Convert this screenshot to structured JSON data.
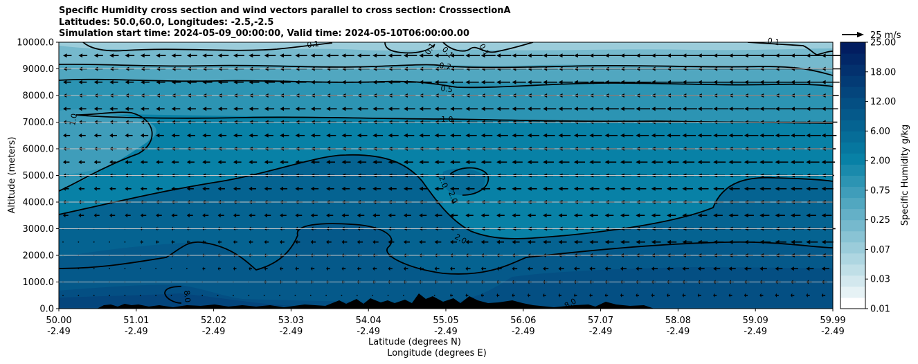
{
  "chart_data": {
    "type": "heatmap",
    "title_lines": [
      "Specific Humidity cross section and wind vectors parallel to cross section: CrosssectionA",
      "Latitudes: 50.0,60.0, Longitudes: -2.5,-2.5",
      "Simulation start time: 2024-05-09_00:00:00, Valid time: 2024-05-10T06:00:00.00"
    ],
    "ylabel": "Altitude (meters)",
    "xlabel_lat": "Latitude (degrees N)",
    "xlabel_lon": "Longitude (degrees E)",
    "ylim": [
      0,
      10000
    ],
    "y_ticks": [
      "0.0",
      "1000.0",
      "2000.0",
      "3000.0",
      "4000.0",
      "5000.0",
      "6000.0",
      "7000.0",
      "8000.0",
      "9000.0",
      "10000.0"
    ],
    "x_ticks_lat": [
      "50.00",
      "51.01",
      "52.02",
      "53.03",
      "54.04",
      "55.05",
      "56.06",
      "57.07",
      "58.08",
      "59.09",
      "59.99"
    ],
    "x_ticks_lon": [
      "-2.49",
      "-2.49",
      "-2.49",
      "-2.49",
      "-2.49",
      "-2.49",
      "-2.49",
      "-2.49",
      "-2.49",
      "-2.49",
      "-2.49"
    ],
    "colorbar": {
      "label": "Specific Humidity g/kg",
      "tick_labels": [
        "0.01",
        "0.03",
        "0.07",
        "0.25",
        "0.75",
        "2.00",
        "6.00",
        "12.00",
        "18.00",
        "25.00"
      ],
      "colors": [
        "#ffffff",
        "#e6f2f5",
        "#d3e8ee",
        "#c0dfe7",
        "#aed6e1",
        "#9bccda",
        "#89c3d4",
        "#76b9cd",
        "#64b0c7",
        "#51a7c0",
        "#3f9dba",
        "#2c94b3",
        "#1a8aac",
        "#0881a6",
        "#06779f",
        "#066d98",
        "#056391",
        "#05598a",
        "#044f83",
        "#04457c",
        "#033b75",
        "#03316e",
        "#022767",
        "#021d60"
      ]
    },
    "contour_labels": [
      "0.1",
      "0.1",
      "0.1",
      "0.1",
      "0.1",
      "0.2",
      "0.5",
      "1.0",
      "1.0",
      "2.0",
      "2.0",
      "2.0",
      "8.0",
      "8.0"
    ],
    "wind_reference": {
      "label": "25 m/s",
      "value_ms": 25
    },
    "wind_rows_m": [
      9500,
      9000,
      8500,
      8000,
      7500,
      7000,
      6500,
      6000,
      5500,
      5000,
      4500,
      4000,
      3500,
      3000,
      2500,
      2000,
      1500,
      1000,
      500
    ],
    "wind_cols_deg": [
      50.0,
      50.2,
      50.4,
      50.6,
      50.8,
      51.0,
      51.2,
      51.4,
      51.6,
      51.8,
      52.0,
      52.2,
      52.4,
      52.6,
      52.8,
      53.0,
      53.2,
      53.4,
      53.6,
      53.8,
      54.0,
      54.2,
      54.4,
      54.6,
      54.8,
      55.0,
      55.2,
      55.4,
      55.6,
      55.8,
      56.0,
      56.2,
      56.4,
      56.6,
      56.8,
      57.0,
      57.2,
      57.4,
      57.6,
      57.8,
      58.0,
      58.2,
      58.4,
      58.6,
      58.8,
      59.0,
      59.2,
      59.4,
      59.6,
      59.8
    ]
  }
}
